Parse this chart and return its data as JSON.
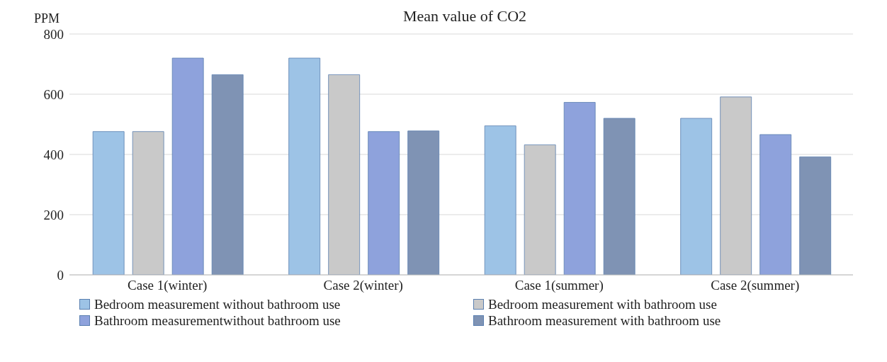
{
  "chart_data": {
    "type": "bar",
    "title": "Mean value of CO2",
    "ylabel": "PPM",
    "categories": [
      "Case 1(winter)",
      "Case 2(winter)",
      "Case 1(summer)",
      "Case 2(summer)"
    ],
    "series": [
      {
        "name": "Bedroom measurement without bathroom use",
        "color": "#9dc3e6",
        "values": [
          476,
          720,
          495,
          520
        ]
      },
      {
        "name": "Bedroom measurement with bathroom use",
        "color": "#c9c9c9",
        "values": [
          476,
          665,
          432,
          591
        ]
      },
      {
        "name": "Bathroom measurementwithout bathroom use",
        "color": "#8ea2dc",
        "values": [
          720,
          476,
          573,
          466
        ]
      },
      {
        "name": "Bathroom measurement with bathroom use",
        "color": "#7f93b4",
        "values": [
          665,
          478,
          520,
          392
        ]
      }
    ],
    "ylim": [
      0,
      800
    ],
    "yticks": [
      0,
      200,
      400,
      600,
      800
    ],
    "grid": "y",
    "legend": "bottom"
  }
}
